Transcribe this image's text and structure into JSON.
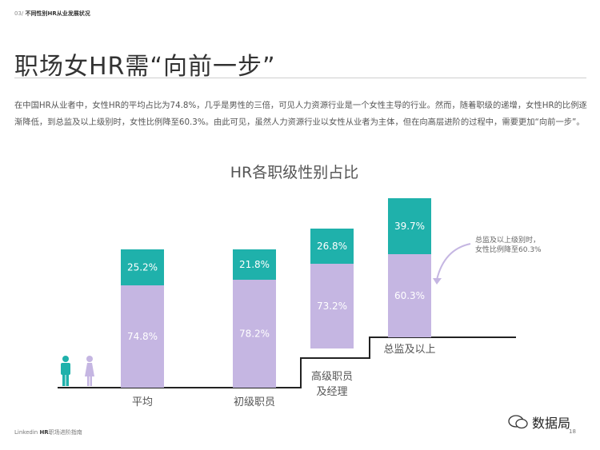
{
  "header": {
    "section": "03/",
    "section_title": "不同性别HR从业发展状况"
  },
  "page_title": "职场女HR需“向前一步”",
  "intro": "在中国HR从业者中，女性HR的平均占比为74.8%，几乎是男性的三倍，可见人力资源行业是一个女性主导的行业。然而，随着职级的递增，女性HR的比例逐渐降低，到总监及以上级别时，女性比例降至60.3%。由此可见，虽然人力资源行业以女性从业者为主体，但在向高层进阶的过程中，需要更加“向前一步”。",
  "footer": {
    "brand": "Linkedin",
    "brand_bold": "HR",
    "guide": "职场进阶指南",
    "page": "18"
  },
  "watermark": "数据局",
  "colors": {
    "female": "#c5b6e2",
    "male": "#1fb1ab",
    "stair": "#222222",
    "text": "#555555",
    "gender_icon_male": "#1fb1ab",
    "gender_icon_female": "#c5b6e2"
  },
  "icons": [
    "male-person-icon",
    "female-person-icon",
    "curved-arrow-icon",
    "wechat-icon"
  ],
  "annotation": {
    "line1": "总监及以上级别时，",
    "line2": "女性比例降至60.3%"
  },
  "chart_data": {
    "type": "bar",
    "stacked": true,
    "title": "HR各职级性别占比",
    "categories": [
      {
        "line1": "平均",
        "line2": ""
      },
      {
        "line1": "初级职员",
        "line2": ""
      },
      {
        "line1": "高级职员",
        "line2": "及经理"
      },
      {
        "line1": "总监及以上",
        "line2": ""
      }
    ],
    "series": [
      {
        "values": [
          74.8,
          78.2,
          73.2,
          60.3
        ],
        "labels": [
          "74.8%",
          "78.2%",
          "73.2%",
          "60.3%"
        ]
      },
      {
        "values": [
          25.2,
          21.8,
          26.8,
          39.7
        ],
        "labels": [
          "25.2%",
          "21.8%",
          "26.8%",
          "39.7%"
        ]
      }
    ],
    "legend": "none",
    "grid": false
  }
}
